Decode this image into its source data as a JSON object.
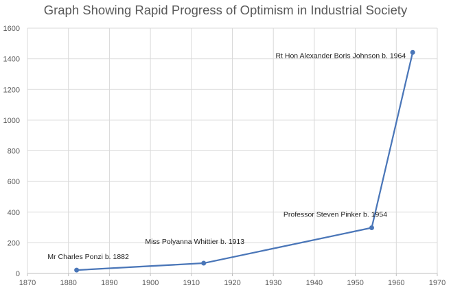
{
  "chart_data": {
    "type": "line",
    "title": "Graph Showing Rapid Progress of Optimism in Industrial Society",
    "xlabel": "",
    "ylabel": "",
    "xlim": [
      1870,
      1970
    ],
    "ylim": [
      0,
      1600
    ],
    "xticks": [
      1870,
      1880,
      1890,
      1900,
      1910,
      1920,
      1930,
      1940,
      1950,
      1960,
      1970
    ],
    "yticks": [
      0,
      200,
      400,
      600,
      800,
      1000,
      1200,
      1400,
      1600
    ],
    "grid": true,
    "legend": "none",
    "series": [
      {
        "color": "#4a76b8",
        "points": [
          {
            "x": 1882,
            "y": 22,
            "label": "Mr Charles Ponzi b. 1882"
          },
          {
            "x": 1913,
            "y": 67,
            "label": "Miss Polyanna Whittier b. 1913"
          },
          {
            "x": 1954,
            "y": 298,
            "label": "Professor Steven Pinker b. 1954"
          },
          {
            "x": 1964,
            "y": 1442,
            "label": "Rt Hon Alexander Boris Johnson b. 1964"
          }
        ]
      }
    ]
  }
}
